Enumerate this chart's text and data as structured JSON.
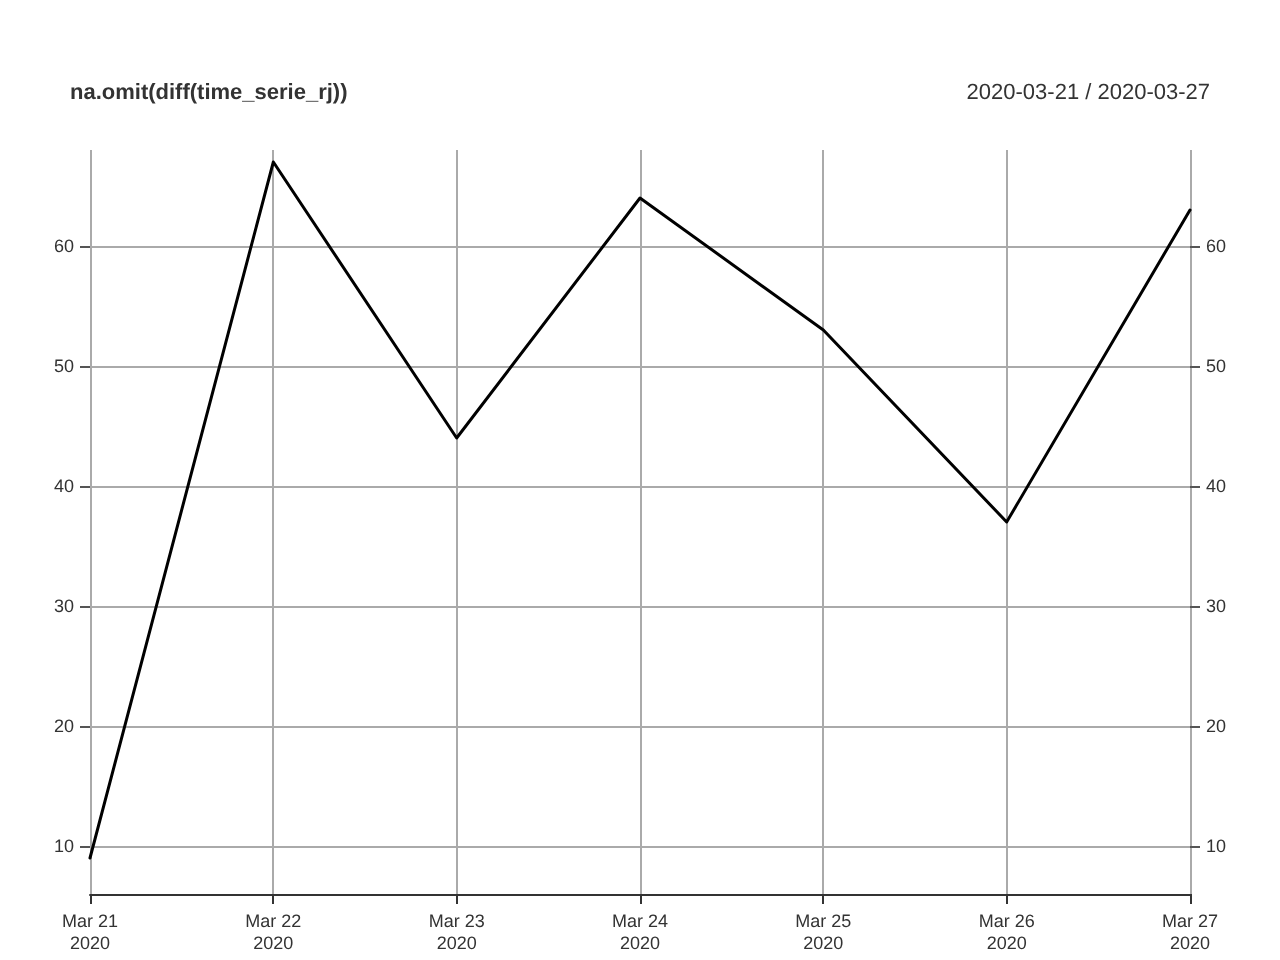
{
  "chart_data": {
    "type": "line",
    "title": "na.omit(diff(time_serie_rj))",
    "subtitle": "2020-03-21 / 2020-03-27",
    "x": [
      "2020-03-21",
      "2020-03-22",
      "2020-03-23",
      "2020-03-24",
      "2020-03-25",
      "2020-03-26",
      "2020-03-27"
    ],
    "series": [
      {
        "color": "#000000",
        "values": [
          9,
          67,
          44,
          64,
          53,
          37,
          63
        ]
      }
    ],
    "xlim": [
      "2020-03-21",
      "2020-03-27"
    ],
    "xticks": [
      {
        "value": "2020-03-21",
        "label": "Mar 21\n2020"
      },
      {
        "value": "2020-03-22",
        "label": "Mar 22\n2020"
      },
      {
        "value": "2020-03-23",
        "label": "Mar 23\n2020"
      },
      {
        "value": "2020-03-24",
        "label": "Mar 24\n2020"
      },
      {
        "value": "2020-03-25",
        "label": "Mar 25\n2020"
      },
      {
        "value": "2020-03-26",
        "label": "Mar 26\n2020"
      },
      {
        "value": "2020-03-27",
        "label": "Mar 27\n2020"
      }
    ],
    "ylim": [
      6,
      68
    ],
    "yticks": [
      10,
      20,
      30,
      40,
      50,
      60
    ],
    "y2lim": [
      6,
      68
    ],
    "y2ticks": [
      10,
      20,
      30,
      40,
      50,
      60
    ],
    "grid": true,
    "marker": "none",
    "line_style": "solid"
  }
}
